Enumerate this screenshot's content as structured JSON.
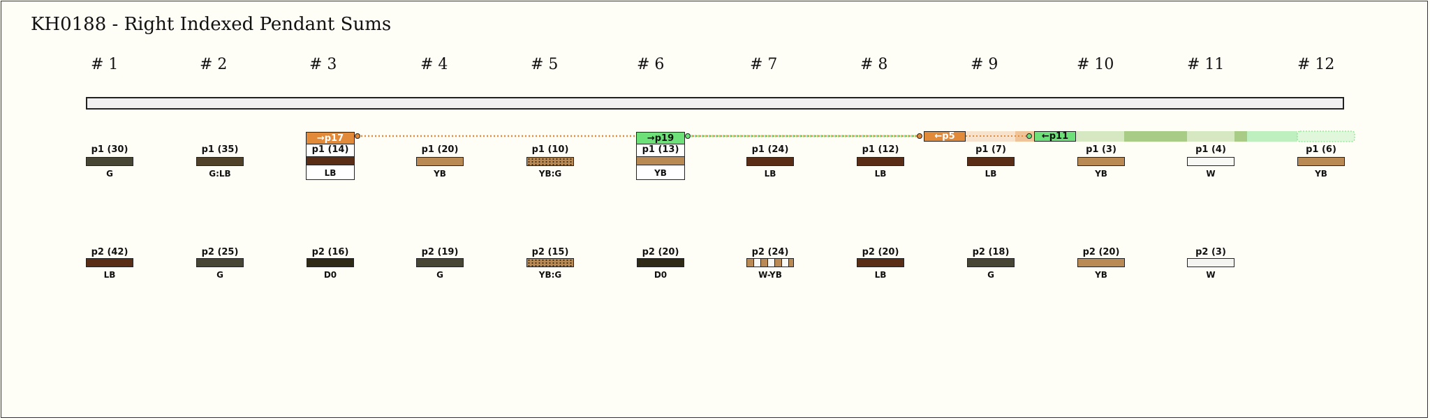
{
  "title": "KH0188 - Right Indexed Pendant Sums",
  "cords": [
    "# 1",
    "# 2",
    "# 3",
    "# 4",
    "# 5",
    "# 6",
    "# 7",
    "# 8",
    "# 9",
    "# 10",
    "# 11",
    "# 12"
  ],
  "colors": {
    "G": "#4a4632",
    "G:LB": "#4d4128",
    "LB": "#5a2e16",
    "YB": "#b98a54",
    "W": "#f4f4f0",
    "D0": "#2f2a16",
    "orange": "#e08a3a",
    "green": "#6ee07a"
  },
  "row1": [
    {
      "label": "p1 (30)",
      "color_name": "G",
      "swatch": "#474533"
    },
    {
      "label": "p1 (35)",
      "color_name": "G:LB",
      "swatch": "#4f4229"
    },
    {
      "label": "p1 (14)",
      "color_name": "LB",
      "swatch": "#5a2e16"
    },
    {
      "label": "p1 (20)",
      "color_name": "YB",
      "swatch": "#b98a54"
    },
    {
      "label": "p1 (10)",
      "color_name": "YB:G",
      "swatch": "hatch"
    },
    {
      "label": "p1 (13)",
      "color_name": "YB",
      "swatch": "#b98a54"
    },
    {
      "label": "p1 (24)",
      "color_name": "LB",
      "swatch": "#5a2e16"
    },
    {
      "label": "p1 (12)",
      "color_name": "LB",
      "swatch": "#5a2e16"
    },
    {
      "label": "p1 (7)",
      "color_name": "LB",
      "swatch": "#5a2e16"
    },
    {
      "label": "p1 (3)",
      "color_name": "YB",
      "swatch": "#b98a54"
    },
    {
      "label": "p1 (4)",
      "color_name": "W",
      "swatch": "#f8f8f4"
    },
    {
      "label": "p1 (6)",
      "color_name": "YB",
      "swatch": "#b98a54"
    }
  ],
  "row2": [
    {
      "label": "p2 (42)",
      "color_name": "LB",
      "swatch": "#5a2e16"
    },
    {
      "label": "p2 (25)",
      "color_name": "G",
      "swatch": "#474533"
    },
    {
      "label": "p2 (16)",
      "color_name": "D0",
      "swatch": "#2f2a16"
    },
    {
      "label": "p2 (19)",
      "color_name": "G",
      "swatch": "#474533"
    },
    {
      "label": "p2 (15)",
      "color_name": "YB:G",
      "swatch": "hatch"
    },
    {
      "label": "p2 (20)",
      "color_name": "D0",
      "swatch": "#2f2a16"
    },
    {
      "label": "p2 (24)",
      "color_name": "W-YB",
      "swatch": "barber"
    },
    {
      "label": "p2 (20)",
      "color_name": "LB",
      "swatch": "#5a2e16"
    },
    {
      "label": "p2 (18)",
      "color_name": "G",
      "swatch": "#474533"
    },
    {
      "label": "p2 (20)",
      "color_name": "YB",
      "swatch": "#b98a54"
    },
    {
      "label": "p2 (3)",
      "color_name": "W",
      "swatch": "#f4f4f0"
    }
  ],
  "indexed": [
    {
      "cord": 3,
      "tag": "→p17",
      "color": "#e08a3a"
    },
    {
      "cord": 6,
      "tag": "→p19",
      "color": "#6ee07a"
    }
  ],
  "sources": [
    {
      "tag": "←p5",
      "color": "#e08a3a"
    },
    {
      "tag": "←p11",
      "color": "#6ee07a"
    }
  ]
}
